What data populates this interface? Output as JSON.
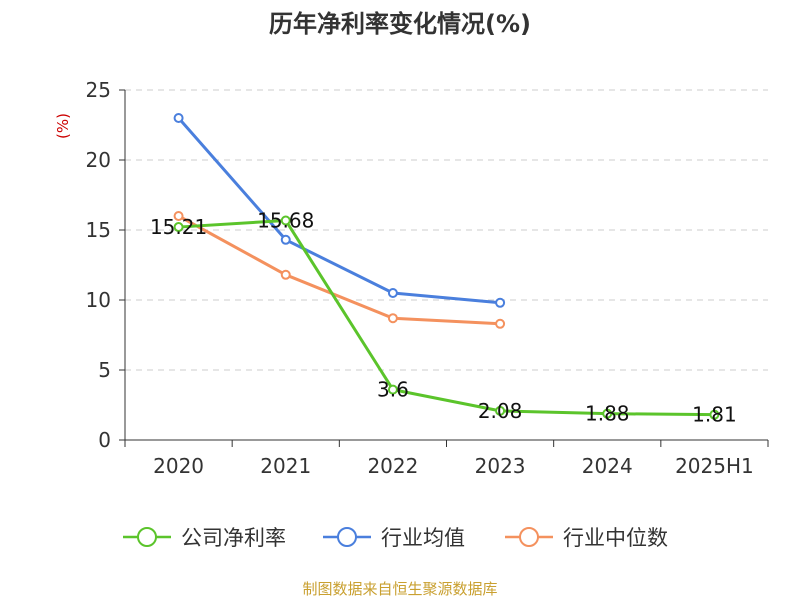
{
  "chart_data": {
    "type": "line",
    "title": "历年净利率变化情况(%)",
    "ylabel": "(%)",
    "categories": [
      "2020",
      "2021",
      "2022",
      "2023",
      "2024",
      "2025H1"
    ],
    "ylim": [
      0,
      25
    ],
    "yticks": [
      "0",
      "5",
      "10",
      "15",
      "20",
      "25"
    ],
    "grid": true,
    "legend_position": "bottom",
    "series": [
      {
        "name": "公司净利率",
        "color": "#5bc42b",
        "values": [
          15.21,
          15.68,
          3.6,
          2.08,
          1.88,
          1.81
        ],
        "labels": [
          "15.21",
          "15.68",
          "3.6",
          "2.08",
          "1.88",
          "1.81"
        ]
      },
      {
        "name": "行业均值",
        "color": "#4a7fdd",
        "values": [
          23.0,
          14.3,
          10.5,
          9.8,
          null,
          null
        ]
      },
      {
        "name": "行业中位数",
        "color": "#f4915e",
        "values": [
          16.0,
          11.8,
          8.7,
          8.3,
          null,
          null
        ]
      }
    ]
  },
  "source": "制图数据来自恒生聚源数据库"
}
